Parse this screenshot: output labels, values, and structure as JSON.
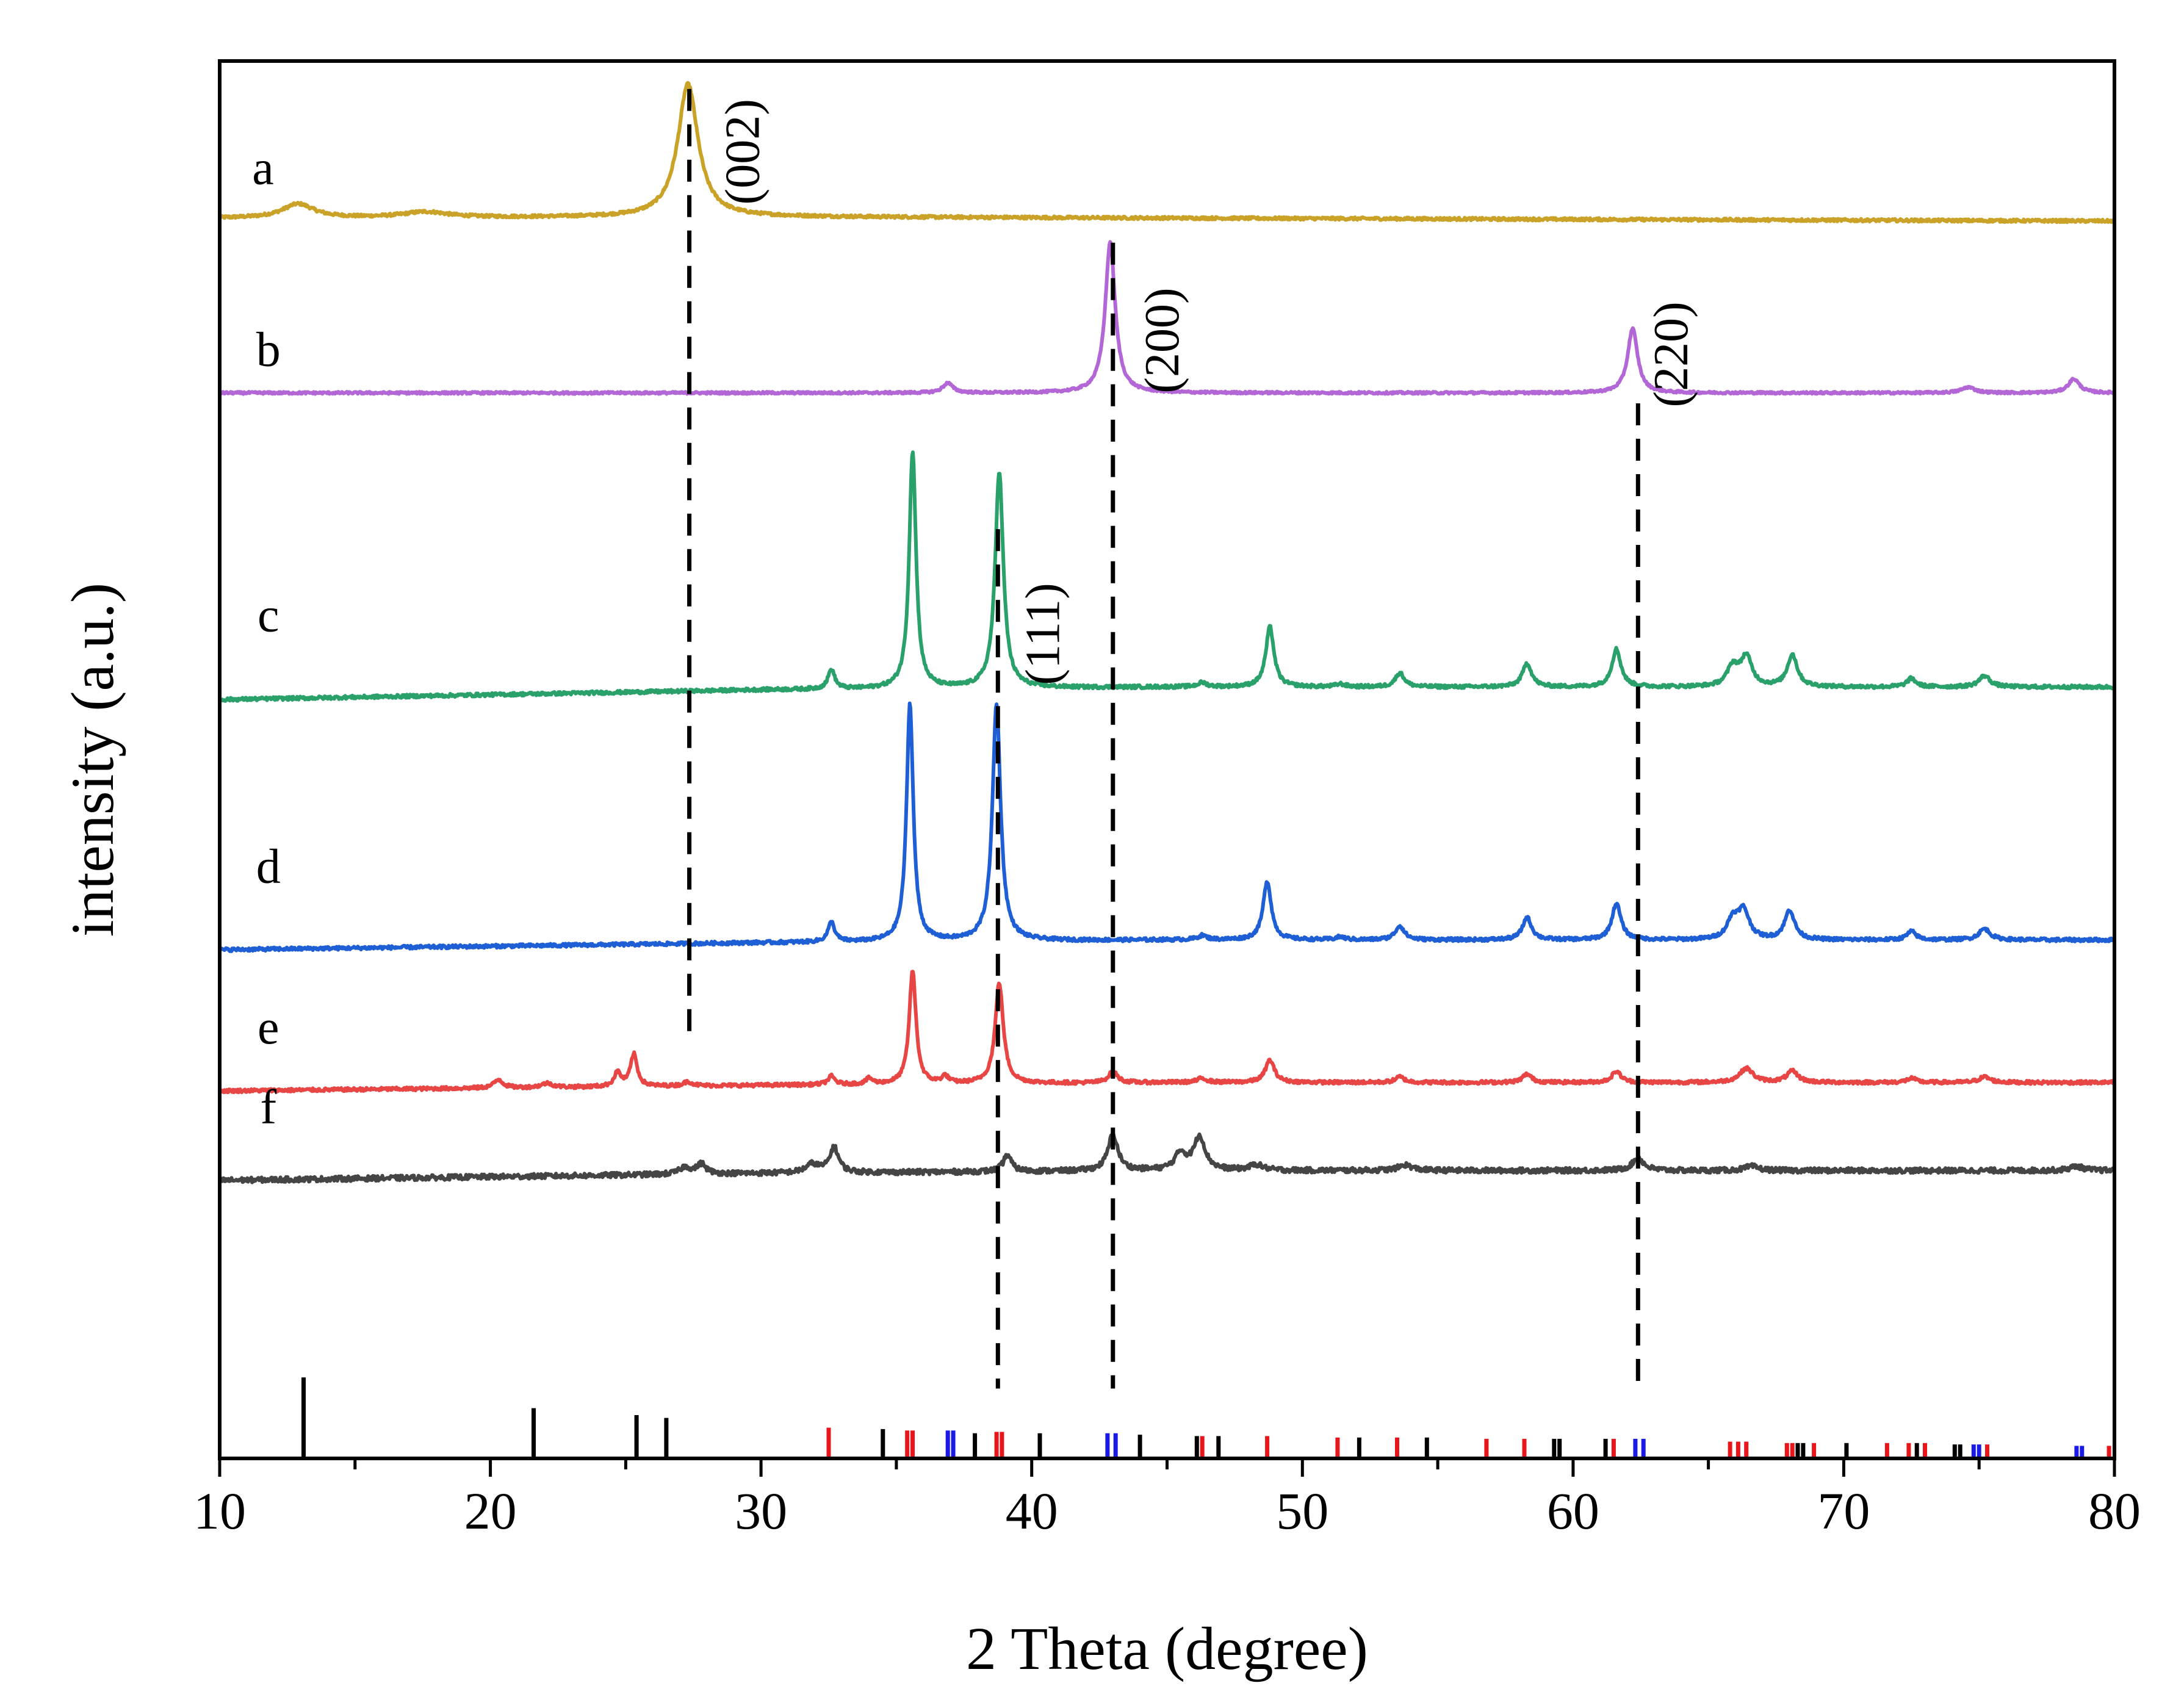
{
  "chart_data": {
    "type": "line",
    "title": "",
    "xlabel": "2 Theta (degree)",
    "ylabel": "intensity (a.u.)",
    "xlim": [
      10,
      80
    ],
    "xticks": [
      10,
      20,
      30,
      40,
      50,
      60,
      70,
      80
    ],
    "grid": false,
    "series": [
      {
        "name": "a",
        "color": "#c9a227",
        "baseline": 0.8875,
        "noise": 0.001,
        "drift": [
          [
            10,
            0
          ],
          [
            30,
            0.001
          ],
          [
            80,
            -0.002
          ]
        ],
        "peaks": [
          [
            12.9,
            0.01,
            0.7
          ],
          [
            17.6,
            0.004,
            1.0
          ],
          [
            27.3,
            0.095,
            0.45
          ]
        ]
      },
      {
        "name": "b",
        "color": "#b366d6",
        "baseline": 0.7625,
        "noise": 0.0008,
        "drift": [
          [
            10,
            0
          ],
          [
            80,
            0
          ]
        ],
        "peaks": [
          [
            36.9,
            0.007,
            0.22
          ],
          [
            42.9,
            0.108,
            0.22
          ],
          [
            62.2,
            0.046,
            0.22
          ],
          [
            74.6,
            0.004,
            0.3
          ],
          [
            78.5,
            0.01,
            0.25
          ]
        ]
      },
      {
        "name": "c",
        "color": "#2aa06a",
        "baseline": 0.552,
        "noise": 0.0012,
        "drift": [
          [
            10,
            -0.009
          ],
          [
            30,
            -0.002
          ],
          [
            45,
            0
          ],
          [
            80,
            0
          ]
        ],
        "peaks": [
          [
            32.6,
            0.014,
            0.15
          ],
          [
            35.6,
            0.17,
            0.15
          ],
          [
            38.8,
            0.155,
            0.18
          ],
          [
            46.3,
            0.003,
            0.2
          ],
          [
            48.8,
            0.043,
            0.18
          ],
          [
            51.4,
            0.002,
            0.2
          ],
          [
            53.6,
            0.01,
            0.2
          ],
          [
            58.3,
            0.017,
            0.2
          ],
          [
            61.6,
            0.027,
            0.2
          ],
          [
            65.9,
            0.014,
            0.25
          ],
          [
            66.4,
            0.021,
            0.25
          ],
          [
            68.1,
            0.023,
            0.22
          ],
          [
            72.5,
            0.006,
            0.2
          ],
          [
            75.2,
            0.008,
            0.25
          ]
        ]
      },
      {
        "name": "d",
        "color": "#1f5fd6",
        "baseline": 0.371,
        "noise": 0.0012,
        "drift": [
          [
            10,
            -0.007
          ],
          [
            30,
            -0.002
          ],
          [
            45,
            0
          ],
          [
            80,
            0
          ]
        ],
        "peaks": [
          [
            32.6,
            0.014,
            0.15
          ],
          [
            35.5,
            0.17,
            0.15
          ],
          [
            38.7,
            0.17,
            0.18
          ],
          [
            46.3,
            0.003,
            0.2
          ],
          [
            48.7,
            0.042,
            0.18
          ],
          [
            51.4,
            0.002,
            0.2
          ],
          [
            53.6,
            0.01,
            0.2
          ],
          [
            58.3,
            0.016,
            0.2
          ],
          [
            61.6,
            0.026,
            0.2
          ],
          [
            65.9,
            0.014,
            0.25
          ],
          [
            66.3,
            0.02,
            0.25
          ],
          [
            68.0,
            0.021,
            0.22
          ],
          [
            72.5,
            0.006,
            0.2
          ],
          [
            75.2,
            0.008,
            0.25
          ]
        ]
      },
      {
        "name": "e",
        "color": "#e84545",
        "baseline": 0.269,
        "noise": 0.0012,
        "drift": [
          [
            10,
            -0.006
          ],
          [
            30,
            -0.002
          ],
          [
            45,
            0
          ],
          [
            80,
            0
          ]
        ],
        "peaks": [
          [
            20.3,
            0.006,
            0.2
          ],
          [
            22.1,
            0.003,
            0.25
          ],
          [
            24.7,
            0.01,
            0.15
          ],
          [
            25.3,
            0.023,
            0.15
          ],
          [
            27.3,
            0.003,
            0.2
          ],
          [
            32.6,
            0.006,
            0.15
          ],
          [
            34.0,
            0.004,
            0.15
          ],
          [
            35.6,
            0.081,
            0.15
          ],
          [
            36.8,
            0.005,
            0.15
          ],
          [
            38.8,
            0.072,
            0.18
          ],
          [
            43.0,
            0.008,
            0.2
          ],
          [
            46.3,
            0.003,
            0.2
          ],
          [
            48.8,
            0.016,
            0.2
          ],
          [
            53.6,
            0.004,
            0.2
          ],
          [
            58.3,
            0.006,
            0.2
          ],
          [
            61.6,
            0.008,
            0.2
          ],
          [
            66.4,
            0.01,
            0.3
          ],
          [
            68.1,
            0.008,
            0.25
          ],
          [
            72.5,
            0.003,
            0.2
          ],
          [
            75.2,
            0.004,
            0.25
          ]
        ]
      },
      {
        "name": "f",
        "color": "#454545",
        "baseline": 0.206,
        "noise": 0.0018,
        "drift": [
          [
            10,
            -0.007
          ],
          [
            30,
            -0.002
          ],
          [
            45,
            0
          ],
          [
            80,
            0
          ]
        ],
        "peaks": [
          [
            27.2,
            0.005,
            0.25
          ],
          [
            27.8,
            0.007,
            0.2
          ],
          [
            31.9,
            0.006,
            0.3
          ],
          [
            32.7,
            0.018,
            0.2
          ],
          [
            39.1,
            0.012,
            0.18
          ],
          [
            43.0,
            0.026,
            0.22
          ],
          [
            45.5,
            0.012,
            0.25
          ],
          [
            46.2,
            0.024,
            0.25
          ],
          [
            48.3,
            0.004,
            0.3
          ],
          [
            53.8,
            0.004,
            0.3
          ],
          [
            62.4,
            0.009,
            0.25
          ],
          [
            66.6,
            0.003,
            0.3
          ],
          [
            78.6,
            0.003,
            0.3
          ]
        ]
      }
    ],
    "series_label_positions": [
      {
        "name": "a",
        "x": 11.6,
        "y": 0.92
      },
      {
        "name": "b",
        "x": 11.8,
        "y": 0.79
      },
      {
        "name": "c",
        "x": 11.8,
        "y": 0.6
      },
      {
        "name": "d",
        "x": 11.8,
        "y": 0.42
      },
      {
        "name": "e",
        "x": 11.8,
        "y": 0.305
      },
      {
        "name": "f",
        "x": 11.8,
        "y": 0.248
      }
    ],
    "reference_lines": [
      {
        "x": 27.35,
        "y_top": 0.98,
        "y_bottom": 0.3
      },
      {
        "x": 38.75,
        "y_top": 0.665,
        "y_bottom": 0.05
      },
      {
        "x": 43.0,
        "y_top": 0.87,
        "y_bottom": 0.05
      },
      {
        "x": 62.4,
        "y_top": 0.755,
        "y_bottom": 0.05
      }
    ],
    "annotations": [
      {
        "text": "(002)",
        "x": 29.5,
        "y": 0.935
      },
      {
        "text": "(200)",
        "x": 45.0,
        "y": 0.8
      },
      {
        "text": "(220)",
        "x": 63.8,
        "y": 0.79
      },
      {
        "text": "(111)",
        "x": 40.6,
        "y": 0.59
      }
    ],
    "reference_sticks": [
      {
        "x": 13.1,
        "h": 0.058,
        "color": "#000000"
      },
      {
        "x": 21.6,
        "h": 0.036,
        "color": "#000000"
      },
      {
        "x": 25.4,
        "h": 0.031,
        "color": "#000000"
      },
      {
        "x": 26.5,
        "h": 0.029,
        "color": "#000000"
      },
      {
        "x": 32.5,
        "h": 0.022,
        "color": "#e8151b"
      },
      {
        "x": 34.5,
        "h": 0.021,
        "color": "#000000"
      },
      {
        "x": 35.4,
        "h": 0.02,
        "color": "#e8151b"
      },
      {
        "x": 35.6,
        "h": 0.02,
        "color": "#e8151b"
      },
      {
        "x": 36.9,
        "h": 0.02,
        "color": "#1a1ae6"
      },
      {
        "x": 37.1,
        "h": 0.02,
        "color": "#1a1ae6"
      },
      {
        "x": 37.9,
        "h": 0.018,
        "color": "#000000"
      },
      {
        "x": 38.7,
        "h": 0.019,
        "color": "#e8151b"
      },
      {
        "x": 38.9,
        "h": 0.019,
        "color": "#e8151b"
      },
      {
        "x": 40.3,
        "h": 0.018,
        "color": "#000000"
      },
      {
        "x": 42.8,
        "h": 0.018,
        "color": "#1a1ae6"
      },
      {
        "x": 43.1,
        "h": 0.018,
        "color": "#1a1ae6"
      },
      {
        "x": 44.0,
        "h": 0.017,
        "color": "#000000"
      },
      {
        "x": 46.1,
        "h": 0.016,
        "color": "#000000"
      },
      {
        "x": 46.3,
        "h": 0.016,
        "color": "#e8151b"
      },
      {
        "x": 46.9,
        "h": 0.016,
        "color": "#000000"
      },
      {
        "x": 48.7,
        "h": 0.016,
        "color": "#e8151b"
      },
      {
        "x": 51.3,
        "h": 0.015,
        "color": "#e8151b"
      },
      {
        "x": 52.1,
        "h": 0.015,
        "color": "#000000"
      },
      {
        "x": 53.5,
        "h": 0.015,
        "color": "#e8151b"
      },
      {
        "x": 54.6,
        "h": 0.015,
        "color": "#000000"
      },
      {
        "x": 56.8,
        "h": 0.014,
        "color": "#e8151b"
      },
      {
        "x": 58.2,
        "h": 0.014,
        "color": "#e8151b"
      },
      {
        "x": 59.3,
        "h": 0.014,
        "color": "#000000"
      },
      {
        "x": 59.5,
        "h": 0.014,
        "color": "#000000"
      },
      {
        "x": 61.2,
        "h": 0.014,
        "color": "#000000"
      },
      {
        "x": 61.5,
        "h": 0.014,
        "color": "#e8151b"
      },
      {
        "x": 62.3,
        "h": 0.014,
        "color": "#1a1ae6"
      },
      {
        "x": 62.6,
        "h": 0.014,
        "color": "#1a1ae6"
      },
      {
        "x": 65.8,
        "h": 0.012,
        "color": "#e8151b"
      },
      {
        "x": 66.1,
        "h": 0.012,
        "color": "#e8151b"
      },
      {
        "x": 66.4,
        "h": 0.012,
        "color": "#e8151b"
      },
      {
        "x": 67.9,
        "h": 0.011,
        "color": "#e8151b"
      },
      {
        "x": 68.1,
        "h": 0.011,
        "color": "#e8151b"
      },
      {
        "x": 68.3,
        "h": 0.011,
        "color": "#000000"
      },
      {
        "x": 68.5,
        "h": 0.011,
        "color": "#000000"
      },
      {
        "x": 68.9,
        "h": 0.011,
        "color": "#e8151b"
      },
      {
        "x": 70.1,
        "h": 0.011,
        "color": "#000000"
      },
      {
        "x": 71.6,
        "h": 0.011,
        "color": "#e8151b"
      },
      {
        "x": 72.4,
        "h": 0.011,
        "color": "#e8151b"
      },
      {
        "x": 72.7,
        "h": 0.011,
        "color": "#000000"
      },
      {
        "x": 73.0,
        "h": 0.011,
        "color": "#e8151b"
      },
      {
        "x": 74.1,
        "h": 0.01,
        "color": "#000000"
      },
      {
        "x": 74.3,
        "h": 0.01,
        "color": "#000000"
      },
      {
        "x": 74.8,
        "h": 0.01,
        "color": "#1a1ae6"
      },
      {
        "x": 75.0,
        "h": 0.01,
        "color": "#1a1ae6"
      },
      {
        "x": 75.3,
        "h": 0.01,
        "color": "#e8151b"
      },
      {
        "x": 78.6,
        "h": 0.009,
        "color": "#1a1ae6"
      },
      {
        "x": 78.8,
        "h": 0.009,
        "color": "#1a1ae6"
      },
      {
        "x": 79.8,
        "h": 0.009,
        "color": "#e8151b"
      }
    ]
  }
}
